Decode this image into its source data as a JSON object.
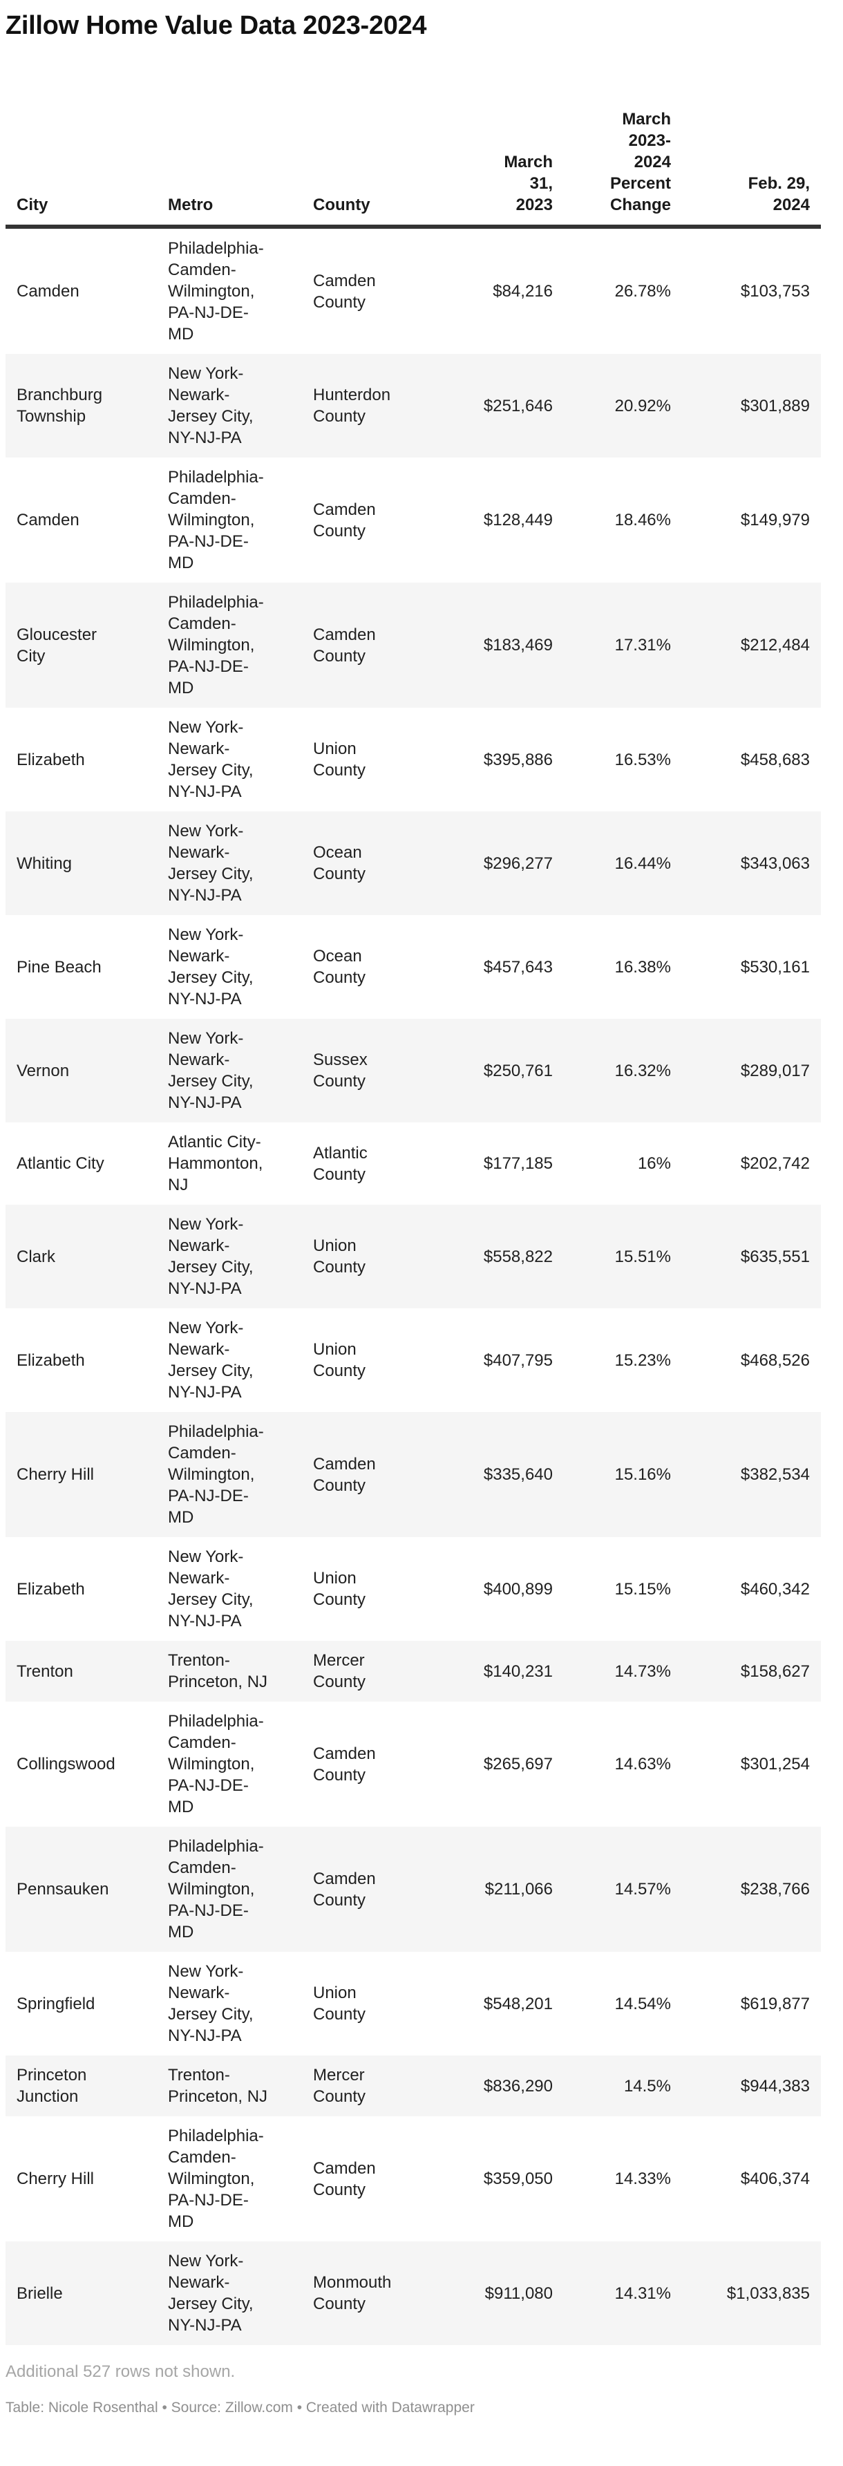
{
  "title": "Zillow Home Value Data 2023-2024",
  "chart_data": {
    "type": "table",
    "columns": [
      {
        "key": "city",
        "label": "City",
        "align": "left"
      },
      {
        "key": "metro",
        "label": "Metro",
        "align": "left"
      },
      {
        "key": "county",
        "label": "County",
        "align": "left"
      },
      {
        "key": "march_2023",
        "label": "March 31, 2023",
        "align": "right"
      },
      {
        "key": "pct_change",
        "label": "March 2023-2024 Percent Change",
        "align": "right"
      },
      {
        "key": "feb_2024",
        "label": "Feb. 29, 2024",
        "align": "right"
      }
    ],
    "rows": [
      {
        "city": "Camden",
        "metro": "Philadelphia-Camden-Wilmington, PA-NJ-DE-MD",
        "county": "Camden County",
        "march_2023": "$84,216",
        "pct_change": "26.78%",
        "feb_2024": "$103,753"
      },
      {
        "city": "Branchburg Township",
        "metro": "New York-Newark-Jersey City, NY-NJ-PA",
        "county": "Hunterdon County",
        "march_2023": "$251,646",
        "pct_change": "20.92%",
        "feb_2024": "$301,889"
      },
      {
        "city": "Camden",
        "metro": "Philadelphia-Camden-Wilmington, PA-NJ-DE-MD",
        "county": "Camden County",
        "march_2023": "$128,449",
        "pct_change": "18.46%",
        "feb_2024": "$149,979"
      },
      {
        "city": "Gloucester City",
        "metro": "Philadelphia-Camden-Wilmington, PA-NJ-DE-MD",
        "county": "Camden County",
        "march_2023": "$183,469",
        "pct_change": "17.31%",
        "feb_2024": "$212,484"
      },
      {
        "city": "Elizabeth",
        "metro": "New York-Newark-Jersey City, NY-NJ-PA",
        "county": "Union County",
        "march_2023": "$395,886",
        "pct_change": "16.53%",
        "feb_2024": "$458,683"
      },
      {
        "city": "Whiting",
        "metro": "New York-Newark-Jersey City, NY-NJ-PA",
        "county": "Ocean County",
        "march_2023": "$296,277",
        "pct_change": "16.44%",
        "feb_2024": "$343,063"
      },
      {
        "city": "Pine Beach",
        "metro": "New York-Newark-Jersey City, NY-NJ-PA",
        "county": "Ocean County",
        "march_2023": "$457,643",
        "pct_change": "16.38%",
        "feb_2024": "$530,161"
      },
      {
        "city": "Vernon",
        "metro": "New York-Newark-Jersey City, NY-NJ-PA",
        "county": "Sussex County",
        "march_2023": "$250,761",
        "pct_change": "16.32%",
        "feb_2024": "$289,017"
      },
      {
        "city": "Atlantic City",
        "metro": "Atlantic City-Hammonton, NJ",
        "county": "Atlantic County",
        "march_2023": "$177,185",
        "pct_change": "16%",
        "feb_2024": "$202,742"
      },
      {
        "city": "Clark",
        "metro": "New York-Newark-Jersey City, NY-NJ-PA",
        "county": "Union County",
        "march_2023": "$558,822",
        "pct_change": "15.51%",
        "feb_2024": "$635,551"
      },
      {
        "city": "Elizabeth",
        "metro": "New York-Newark-Jersey City, NY-NJ-PA",
        "county": "Union County",
        "march_2023": "$407,795",
        "pct_change": "15.23%",
        "feb_2024": "$468,526"
      },
      {
        "city": "Cherry Hill",
        "metro": "Philadelphia-Camden-Wilmington, PA-NJ-DE-MD",
        "county": "Camden County",
        "march_2023": "$335,640",
        "pct_change": "15.16%",
        "feb_2024": "$382,534"
      },
      {
        "city": "Elizabeth",
        "metro": "New York-Newark-Jersey City, NY-NJ-PA",
        "county": "Union County",
        "march_2023": "$400,899",
        "pct_change": "15.15%",
        "feb_2024": "$460,342"
      },
      {
        "city": "Trenton",
        "metro": "Trenton-Princeton, NJ",
        "county": "Mercer County",
        "march_2023": "$140,231",
        "pct_change": "14.73%",
        "feb_2024": "$158,627"
      },
      {
        "city": "Collingswood",
        "metro": "Philadelphia-Camden-Wilmington, PA-NJ-DE-MD",
        "county": "Camden County",
        "march_2023": "$265,697",
        "pct_change": "14.63%",
        "feb_2024": "$301,254"
      },
      {
        "city": "Pennsauken",
        "metro": "Philadelphia-Camden-Wilmington, PA-NJ-DE-MD",
        "county": "Camden County",
        "march_2023": "$211,066",
        "pct_change": "14.57%",
        "feb_2024": "$238,766"
      },
      {
        "city": "Springfield",
        "metro": "New York-Newark-Jersey City, NY-NJ-PA",
        "county": "Union County",
        "march_2023": "$548,201",
        "pct_change": "14.54%",
        "feb_2024": "$619,877"
      },
      {
        "city": "Princeton Junction",
        "metro": "Trenton-Princeton, NJ",
        "county": "Mercer County",
        "march_2023": "$836,290",
        "pct_change": "14.5%",
        "feb_2024": "$944,383"
      },
      {
        "city": "Cherry Hill",
        "metro": "Philadelphia-Camden-Wilmington, PA-NJ-DE-MD",
        "county": "Camden County",
        "march_2023": "$359,050",
        "pct_change": "14.33%",
        "feb_2024": "$406,374"
      },
      {
        "city": "Brielle",
        "metro": "New York-Newark-Jersey City, NY-NJ-PA",
        "county": "Monmouth County",
        "march_2023": "$911,080",
        "pct_change": "14.31%",
        "feb_2024": "$1,033,835"
      }
    ],
    "title": "Zillow Home Value Data 2023-2024",
    "layout_hints": {
      "striped_rows": "even rows shaded",
      "header_rule": "thick dark bottom border",
      "numeric_columns_right_aligned": true
    }
  },
  "footer": {
    "note": "Additional 527 rows not shown.",
    "attribution": "Table: Nicole Rosenthal • Source: Zillow.com • Created with Datawrapper"
  },
  "colors": {
    "title_text": "#111111",
    "header_text": "#1a1a1a",
    "body_text": "#212121",
    "stripe_background": "#f5f5f5",
    "header_border": "#333333",
    "note_text": "#a6a6a6",
    "attribution_text": "#8f8f8f"
  }
}
